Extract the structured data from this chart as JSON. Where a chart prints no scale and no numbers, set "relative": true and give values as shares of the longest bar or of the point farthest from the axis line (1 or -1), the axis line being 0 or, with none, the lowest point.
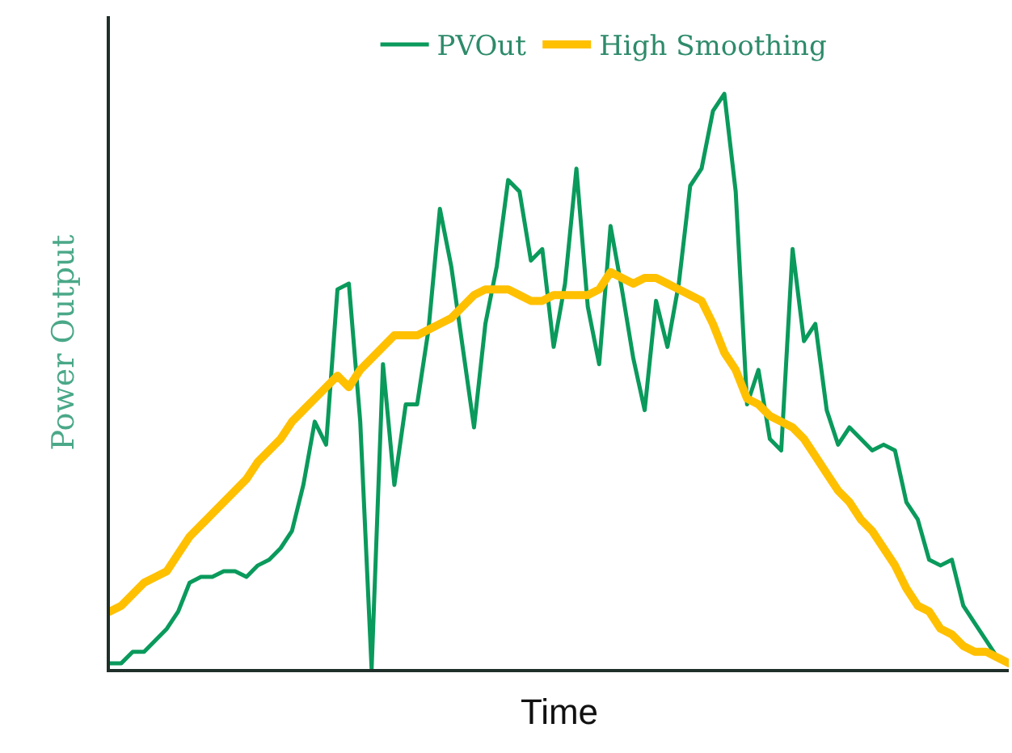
{
  "chart_data": {
    "type": "line",
    "relative": true,
    "xlabel": "Time",
    "ylabel": "Power Output",
    "legend": "top",
    "marker": "none",
    "line_style": "solid",
    "categories": [
      null,
      null,
      null,
      null,
      null,
      null,
      null,
      null,
      null,
      null,
      null,
      null,
      null,
      null,
      null,
      null,
      null,
      null,
      null,
      null,
      null,
      null,
      null,
      null,
      null,
      null,
      null,
      null,
      null,
      null,
      null,
      null,
      null,
      null,
      null,
      null,
      null,
      null,
      null,
      null,
      null,
      null,
      null,
      null,
      null,
      null,
      null,
      null,
      null,
      null,
      null,
      null,
      null,
      null,
      null,
      null,
      null,
      null,
      null,
      null,
      null,
      null,
      null,
      null,
      null,
      null,
      null,
      null,
      null,
      null,
      null,
      null,
      null,
      null,
      null,
      null,
      null,
      null,
      null,
      null
    ],
    "series": [
      {
        "name": "PVOut",
        "color": "#0a9a5c",
        "values": [
          0.01,
          0.01,
          0.03,
          0.03,
          0.05,
          0.07,
          0.1,
          0.15,
          0.16,
          0.16,
          0.17,
          0.17,
          0.16,
          0.18,
          0.19,
          0.21,
          0.24,
          0.32,
          0.43,
          0.39,
          0.66,
          0.67,
          0.43,
          0.0,
          0.53,
          0.32,
          0.46,
          0.46,
          0.59,
          0.8,
          0.7,
          0.56,
          0.42,
          0.6,
          0.7,
          0.85,
          0.83,
          0.71,
          0.73,
          0.56,
          0.67,
          0.87,
          0.63,
          0.53,
          0.77,
          0.66,
          0.54,
          0.45,
          0.64,
          0.56,
          0.67,
          0.84,
          0.87,
          0.97,
          1.0,
          0.83,
          0.46,
          0.52,
          0.4,
          0.38,
          0.73,
          0.57,
          0.6,
          0.45,
          0.39,
          0.42,
          0.4,
          0.38,
          0.39,
          0.38,
          0.29,
          0.26,
          0.19,
          0.18,
          0.19,
          0.11,
          0.08,
          0.05,
          0.02,
          0.01
        ]
      },
      {
        "name": "High Smoothing",
        "color": "#ffc000",
        "values": [
          0.1,
          0.11,
          0.13,
          0.15,
          0.16,
          0.17,
          0.2,
          0.23,
          0.25,
          0.27,
          0.29,
          0.31,
          0.33,
          0.36,
          0.38,
          0.4,
          0.43,
          0.45,
          0.47,
          0.49,
          0.51,
          0.49,
          0.52,
          0.54,
          0.56,
          0.58,
          0.58,
          0.58,
          0.59,
          0.6,
          0.61,
          0.63,
          0.65,
          0.66,
          0.66,
          0.66,
          0.65,
          0.64,
          0.64,
          0.65,
          0.65,
          0.65,
          0.65,
          0.66,
          0.69,
          0.68,
          0.67,
          0.68,
          0.68,
          0.67,
          0.66,
          0.65,
          0.64,
          0.6,
          0.55,
          0.52,
          0.47,
          0.46,
          0.44,
          0.43,
          0.42,
          0.4,
          0.37,
          0.34,
          0.31,
          0.29,
          0.26,
          0.24,
          0.21,
          0.18,
          0.14,
          0.11,
          0.1,
          0.07,
          0.06,
          0.04,
          0.03,
          0.03,
          0.02,
          0.01
        ]
      }
    ]
  }
}
